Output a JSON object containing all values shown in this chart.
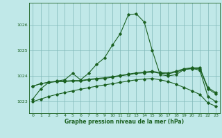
{
  "title": "Graphe pression niveau de la mer (hPa)",
  "background_color": "#c0e8e8",
  "grid_color": "#80b8b8",
  "line_color": "#1a6020",
  "xlim": [
    -0.5,
    23.5
  ],
  "ylim": [
    1022.55,
    1026.85
  ],
  "yticks": [
    1023,
    1024,
    1025,
    1026
  ],
  "xticks": [
    0,
    1,
    2,
    3,
    4,
    5,
    6,
    7,
    8,
    9,
    10,
    11,
    12,
    13,
    14,
    15,
    16,
    17,
    18,
    19,
    20,
    21,
    22,
    23
  ],
  "series1": [
    1023.1,
    1023.5,
    1023.75,
    1023.8,
    1023.85,
    1024.1,
    1023.85,
    1024.1,
    1024.45,
    1024.7,
    1025.2,
    1025.65,
    1026.38,
    1026.42,
    1026.1,
    1025.0,
    1024.05,
    1024.0,
    1024.05,
    1024.25,
    1024.3,
    1024.22,
    1023.2,
    1023.0
  ],
  "series2": [
    1023.6,
    1023.7,
    1023.75,
    1023.78,
    1023.78,
    1023.8,
    1023.8,
    1023.85,
    1023.88,
    1023.9,
    1023.95,
    1024.0,
    1024.05,
    1024.1,
    1024.12,
    1024.15,
    1024.1,
    1024.08,
    1024.15,
    1024.25,
    1024.28,
    1024.28,
    1023.5,
    1023.3
  ],
  "series3": [
    1023.6,
    1023.7,
    1023.75,
    1023.78,
    1023.8,
    1023.82,
    1023.82,
    1023.87,
    1023.9,
    1023.93,
    1023.97,
    1024.02,
    1024.07,
    1024.12,
    1024.15,
    1024.18,
    1024.13,
    1024.12,
    1024.18,
    1024.28,
    1024.32,
    1024.32,
    1023.55,
    1023.35
  ],
  "series4": [
    1023.0,
    1023.1,
    1023.2,
    1023.28,
    1023.35,
    1023.42,
    1023.48,
    1023.54,
    1023.6,
    1023.65,
    1023.7,
    1023.75,
    1023.8,
    1023.85,
    1023.88,
    1023.9,
    1023.85,
    1023.78,
    1023.68,
    1023.55,
    1023.42,
    1023.28,
    1022.95,
    1022.82
  ]
}
